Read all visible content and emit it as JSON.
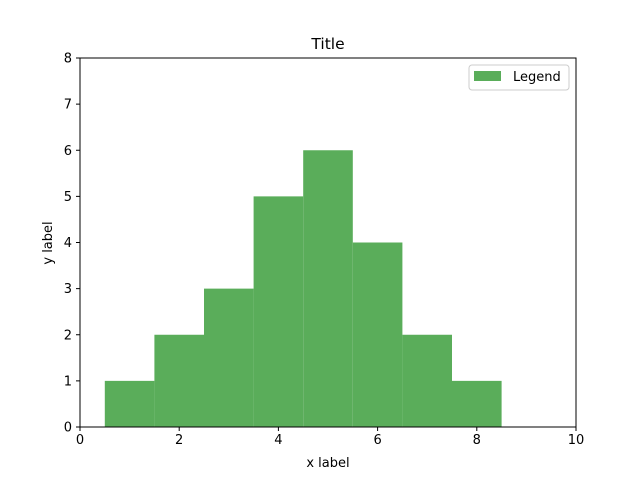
{
  "chart_data": {
    "type": "bar",
    "title": "Title",
    "xlabel": "x label",
    "ylabel": "y label",
    "xlim": [
      0,
      10
    ],
    "ylim": [
      0,
      8
    ],
    "xticks": [
      "0",
      "2",
      "4",
      "6",
      "8",
      "10"
    ],
    "yticks": [
      "0",
      "1",
      "2",
      "3",
      "4",
      "5",
      "6",
      "7",
      "8"
    ],
    "bar_width": 1,
    "grid": false,
    "legend_position": "top-right",
    "series": [
      {
        "name": "Legend",
        "color": "#5aad5a",
        "x": [
          1,
          2,
          3,
          4,
          5,
          6,
          7,
          8
        ],
        "values": [
          1,
          2,
          3,
          5,
          6,
          4,
          2,
          1
        ]
      }
    ]
  }
}
